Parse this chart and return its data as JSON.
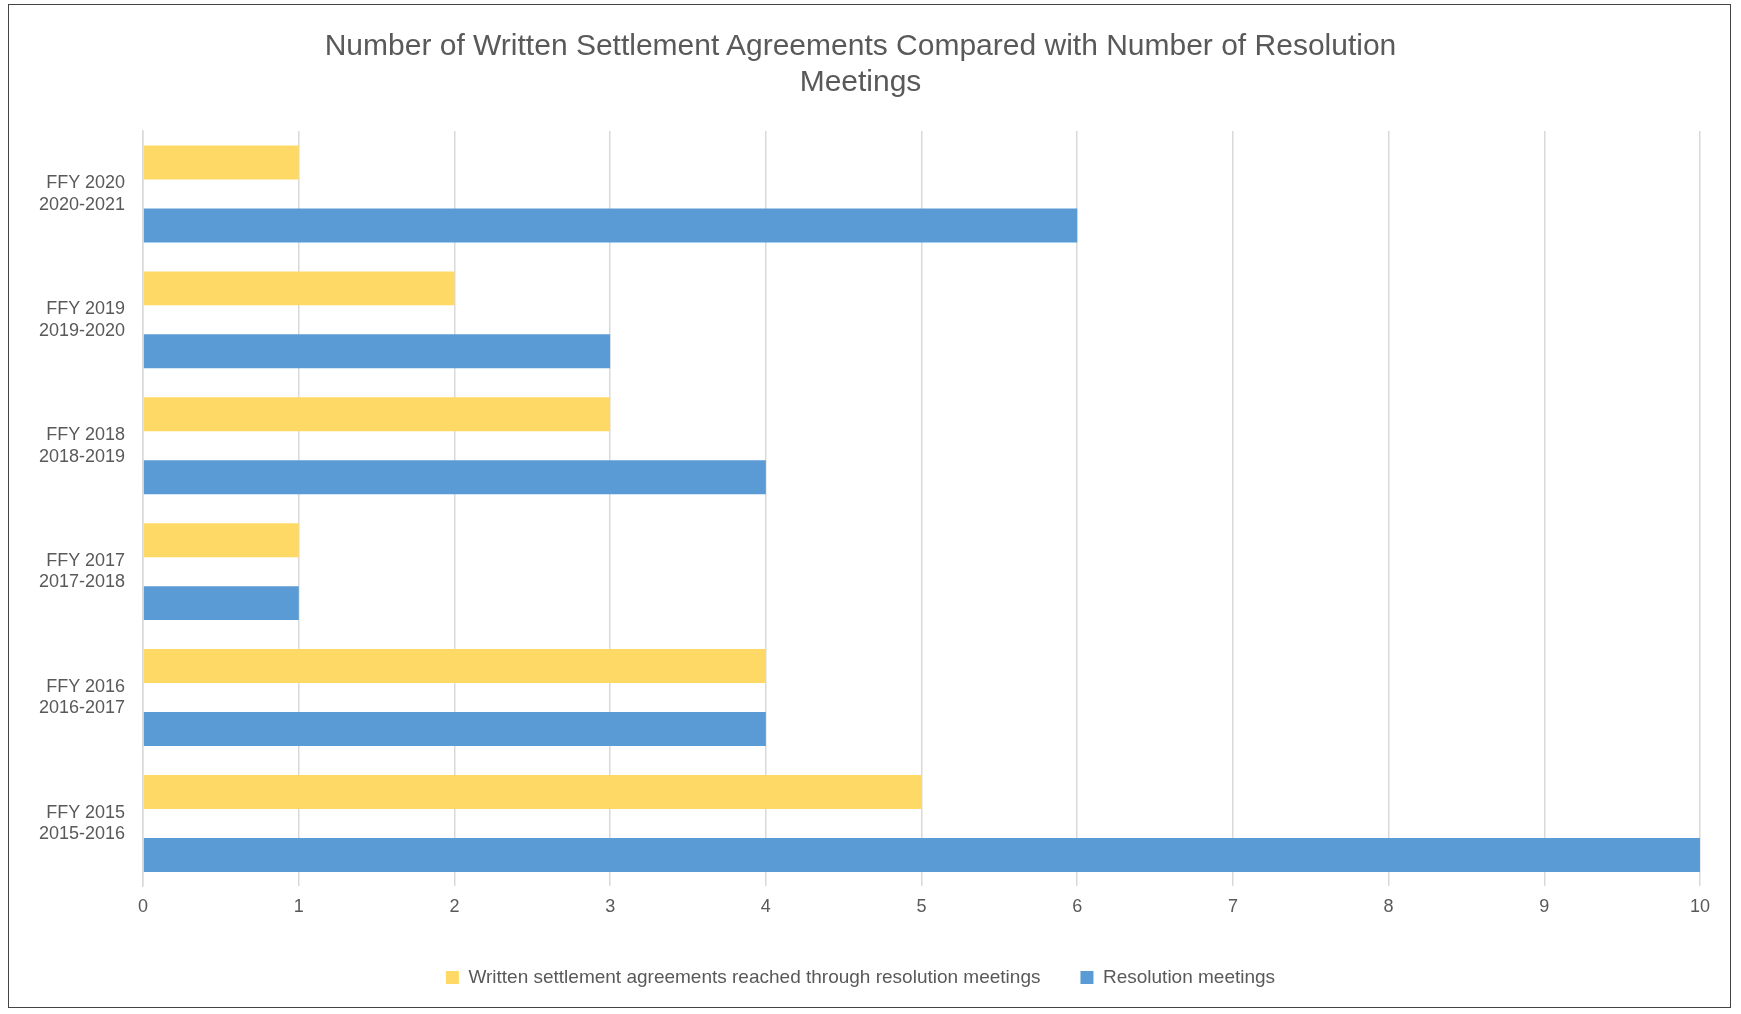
{
  "chart_data": {
    "type": "bar",
    "orientation": "horizontal",
    "title": "Number of Written Settlement Agreements Compared with Number of Resolution Meetings",
    "categories": [
      "FFY 2020\n2020-2021",
      "FFY 2019\n2019-2020",
      "FFY 2018\n2018-2019",
      "FFY 2017\n2017-2018",
      "FFY 2016\n2016-2017",
      "FFY 2015\n2015-2016"
    ],
    "series": [
      {
        "name": "Written settlement agreements reached through resolution meetings",
        "color": "#ffd966",
        "values": [
          1,
          2,
          3,
          1,
          4,
          5
        ]
      },
      {
        "name": "Resolution meetings",
        "color": "#5b9bd5",
        "values": [
          6,
          3,
          4,
          1,
          4,
          10
        ]
      }
    ],
    "xlim": [
      0,
      10
    ],
    "xticks": [
      0,
      1,
      2,
      3,
      4,
      5,
      6,
      7,
      8,
      9,
      10
    ],
    "grid": "x",
    "legend": "bottom"
  }
}
